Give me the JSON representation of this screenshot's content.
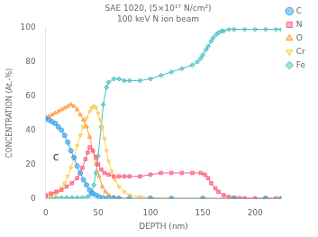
{
  "chart_data": {
    "type": "line",
    "title": "SAE 1020, (5×10¹⁷ N/cm²)",
    "subtitle": "100 keV N ion beam",
    "x_label": "DEPTH (nm)",
    "y_label": "CONCENTRATION (At.-%)",
    "xlim": [
      0,
      225
    ],
    "ylim": [
      0,
      100
    ],
    "xticks": [
      0,
      50,
      100,
      150,
      200
    ],
    "yticks": [
      0,
      20,
      40,
      60,
      80,
      100
    ],
    "grid": false,
    "legend": "upper right",
    "annotations": [
      {
        "text": "C",
        "x": 7,
        "y": 21
      }
    ],
    "series": [
      {
        "name": "C",
        "marker": "circle",
        "x": [
          0,
          3,
          6,
          9,
          12,
          15,
          18,
          21,
          24,
          27,
          30,
          33,
          36,
          39,
          42,
          45,
          48,
          51,
          55,
          60,
          65,
          70,
          80,
          100,
          120,
          150,
          180,
          210,
          225
        ],
        "values": [
          47,
          46,
          45,
          44,
          42,
          40,
          37,
          33,
          28,
          24,
          19,
          15,
          11,
          8,
          5,
          3,
          2,
          1,
          0.5,
          0.3,
          0.2,
          0.1,
          0.1,
          0.1,
          0.1,
          0.1,
          0.1,
          0.1,
          0.1
        ]
      },
      {
        "name": "N",
        "marker": "square",
        "x": [
          0,
          5,
          10,
          15,
          20,
          25,
          30,
          35,
          38,
          40,
          42,
          45,
          48,
          50,
          53,
          56,
          60,
          65,
          70,
          75,
          80,
          90,
          100,
          110,
          120,
          130,
          140,
          148,
          152,
          155,
          158,
          162,
          165,
          170,
          175,
          180,
          185,
          190,
          200,
          210,
          220
        ],
        "values": [
          2,
          3,
          4,
          5,
          7,
          9,
          12,
          18,
          23,
          27,
          30,
          28,
          24,
          20,
          17,
          15,
          14,
          13,
          13,
          13,
          13,
          13,
          14,
          15,
          15,
          15,
          15,
          15,
          14,
          12,
          9,
          6,
          4,
          2,
          1,
          0.5,
          0.3,
          0.2,
          0.1,
          0.1,
          0.1
        ]
      },
      {
        "name": "O",
        "marker": "triangle-up",
        "x": [
          0,
          3,
          6,
          9,
          12,
          15,
          18,
          21,
          24,
          27,
          30,
          33,
          36,
          39,
          42,
          45,
          48,
          51,
          54,
          57,
          60,
          65,
          70,
          80,
          100,
          150,
          200,
          225
        ],
        "values": [
          47,
          48,
          49,
          50,
          51,
          52,
          53,
          54,
          55,
          54,
          52,
          49,
          46,
          42,
          36,
          28,
          20,
          13,
          7,
          4,
          2,
          1,
          0.5,
          0.2,
          0.1,
          0.1,
          0.1,
          0.1
        ]
      },
      {
        "name": "Cr",
        "marker": "triangle-down",
        "x": [
          0,
          3,
          6,
          9,
          12,
          15,
          18,
          21,
          24,
          27,
          30,
          33,
          36,
          39,
          42,
          44,
          46,
          48,
          50,
          52,
          54,
          56,
          58,
          60,
          63,
          66,
          70,
          75,
          80,
          90,
          100,
          120,
          150,
          180,
          210,
          225
        ],
        "values": [
          1,
          1,
          2,
          3,
          4,
          6,
          9,
          13,
          18,
          24,
          31,
          37,
          42,
          47,
          51,
          53,
          54,
          53,
          50,
          46,
          41,
          35,
          28,
          22,
          16,
          11,
          7,
          4,
          2,
          1,
          0.5,
          0.2,
          0.1,
          0.1,
          0.1,
          0.1
        ]
      },
      {
        "name": "Fe",
        "marker": "diamond",
        "x": [
          0,
          5,
          10,
          15,
          20,
          25,
          30,
          35,
          40,
          42,
          44,
          46,
          48,
          50,
          53,
          55,
          58,
          60,
          65,
          70,
          75,
          80,
          90,
          100,
          110,
          120,
          130,
          140,
          145,
          148,
          150,
          153,
          155,
          158,
          160,
          163,
          165,
          168,
          170,
          175,
          180,
          190,
          200,
          210,
          220,
          225
        ],
        "values": [
          0.5,
          0.5,
          0.5,
          0.5,
          0.5,
          0.5,
          0.5,
          0.5,
          1,
          2,
          4,
          8,
          15,
          25,
          42,
          55,
          65,
          68,
          70,
          70,
          69,
          69,
          69,
          70,
          72,
          74,
          76,
          78,
          80,
          82,
          84,
          87,
          89,
          92,
          94,
          96,
          97,
          98,
          98,
          99,
          99,
          99,
          99,
          99,
          99,
          99
        ]
      }
    ]
  }
}
